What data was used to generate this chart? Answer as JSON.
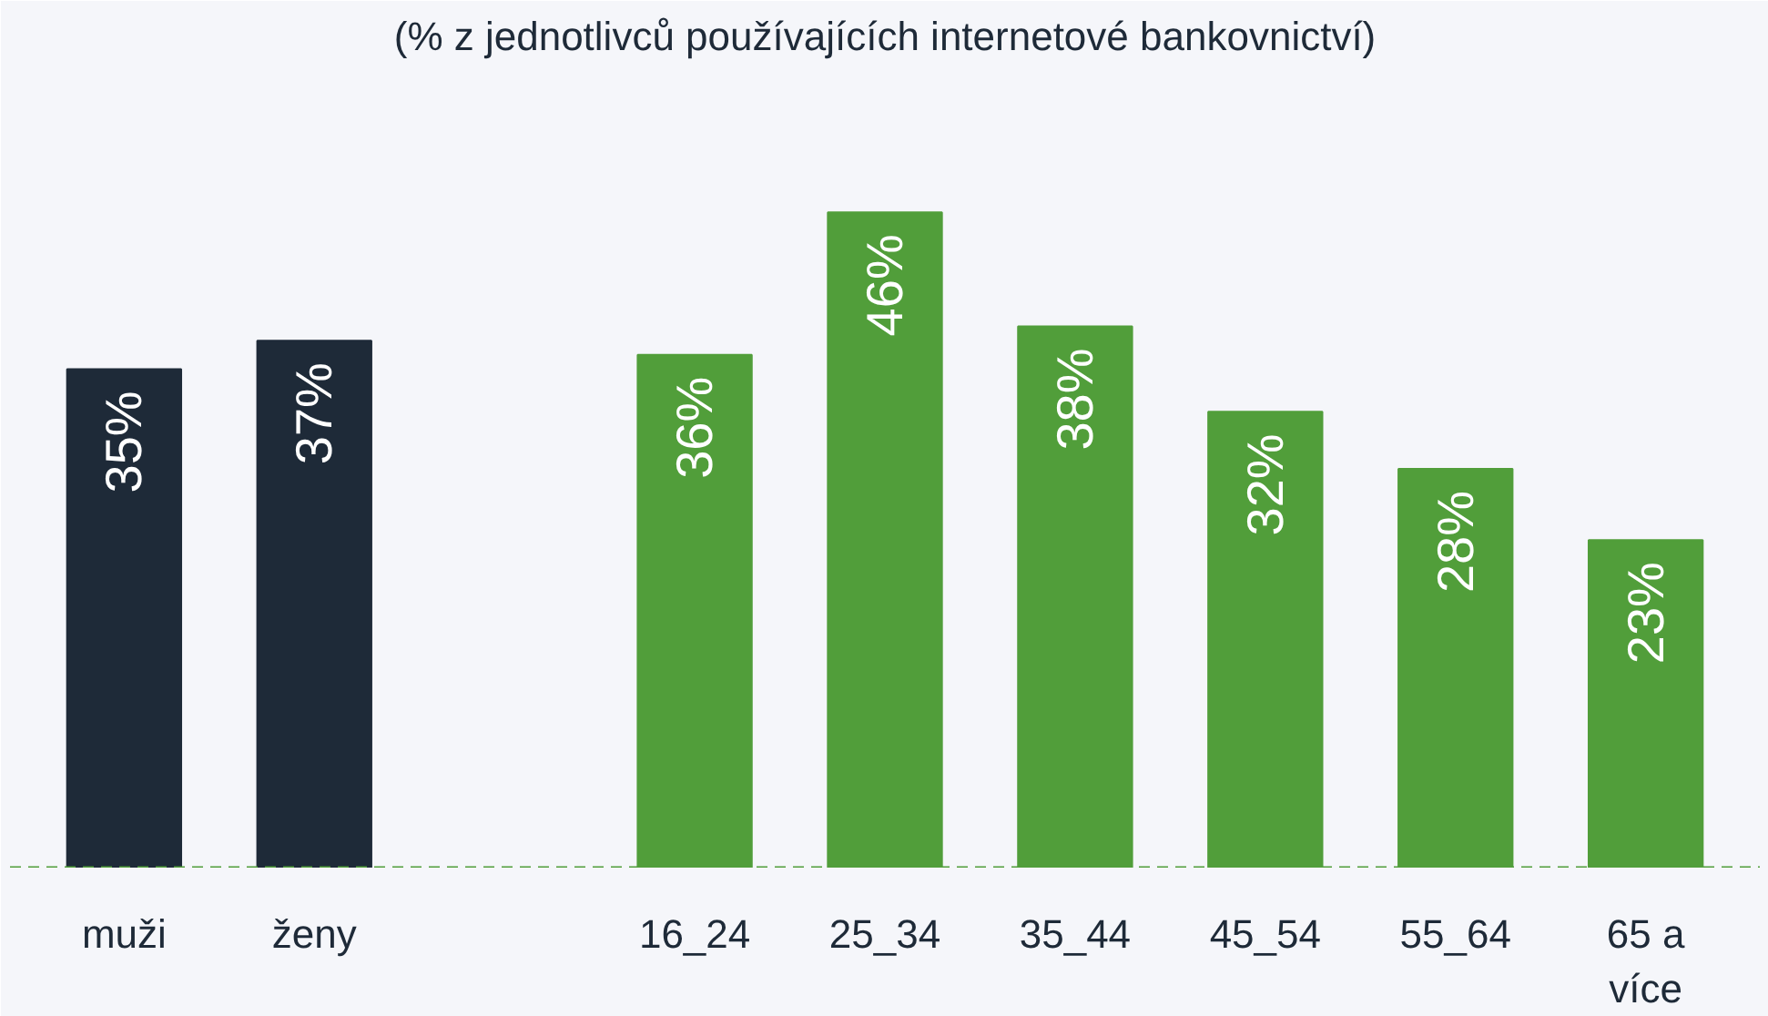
{
  "chart_data": {
    "type": "bar",
    "subtitle": "(% z jednotlivců používajících internetové bankovnictví)",
    "categories": [
      "muži",
      "ženy",
      null,
      "16_24",
      "25_34",
      "35_44",
      "45_54",
      "55_64",
      "65 a více"
    ],
    "values": [
      35,
      37,
      null,
      36,
      46,
      38,
      32,
      28,
      23
    ],
    "colors": [
      "#1e2a38",
      "#1e2a38",
      "#1e2a38",
      "#519e3a",
      "#519e3a",
      "#519e3a",
      "#519e3a",
      "#519e3a",
      "#519e3a"
    ],
    "value_labels": [
      "35%",
      "37%",
      null,
      "36%",
      "46%",
      "38%",
      "32%",
      "28%",
      "23%"
    ],
    "ref_lines": [
      {
        "axis": "y",
        "value": 0,
        "color": "#519e3a",
        "line_style": "dashed"
      }
    ],
    "grid": false
  }
}
